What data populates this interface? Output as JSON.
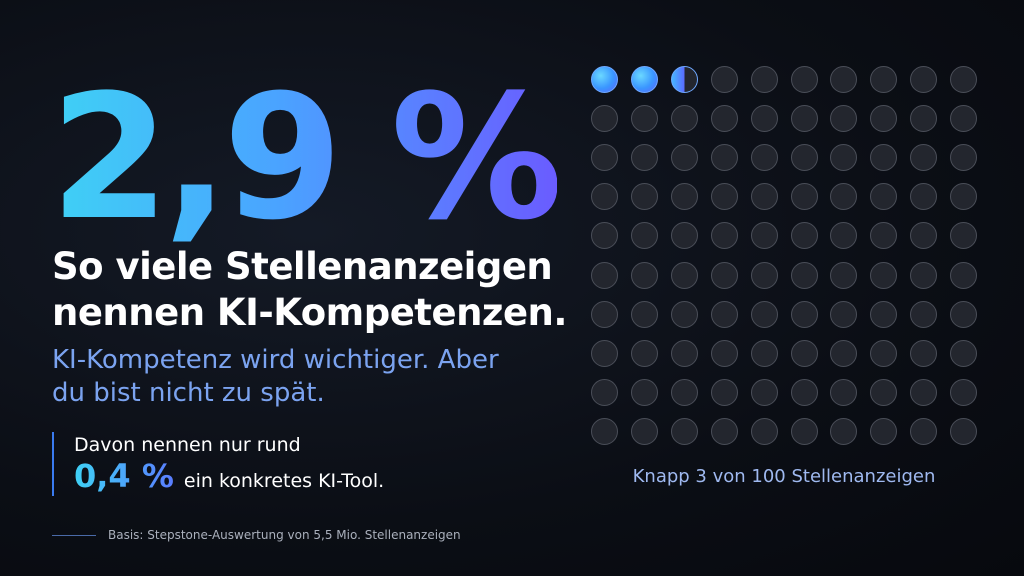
{
  "hero": {
    "value": "2,9 %",
    "headline": "So viele Stellenanzeigen nennen KI-Kompetenzen.",
    "subline": "KI-Kompetenz wird wichtiger. Aber du bist nicht zu spät."
  },
  "callout": {
    "lead": "Davon nennen nur rund",
    "value": "0,4 %",
    "text": "ein konkretes KI-Tool."
  },
  "footnote": "Basis: Stepstone-Auswertung von 5,5 Mio. Stellenanzeigen",
  "dot_grid": {
    "rows": 10,
    "cols": 10,
    "filled": 2.9,
    "caption": "Knapp 3 von 100 Stellenanzeigen"
  },
  "colors": {
    "accent_cyan": "#3fd1f5",
    "accent_blue": "#4aa3ff",
    "accent_violet": "#6a5cff",
    "background": "#0b0e15"
  }
}
